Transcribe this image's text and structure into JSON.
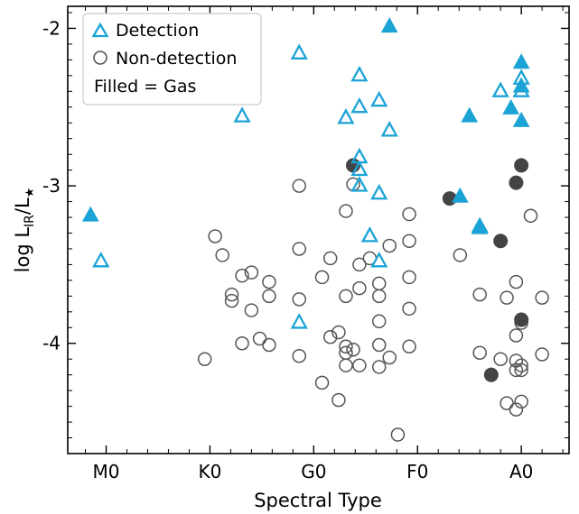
{
  "chart_data": {
    "type": "scatter",
    "xlabel": "Spectral Type",
    "ylabel_main": "log L",
    "ylabel_sub1": "IR",
    "ylabel_mid": "/L",
    "ylabel_sub2": "★",
    "x_ticks": [
      {
        "label": "M0",
        "value": 0
      },
      {
        "label": "K0",
        "value": 1
      },
      {
        "label": "G0",
        "value": 2
      },
      {
        "label": "F0",
        "value": 3
      },
      {
        "label": "A0",
        "value": 4
      }
    ],
    "y_ticks": [
      {
        "label": "-2",
        "value": -2
      },
      {
        "label": "-3",
        "value": -3
      },
      {
        "label": "-4",
        "value": -4
      }
    ],
    "xlim": [
      -0.37,
      4.46
    ],
    "ylim": [
      -4.7,
      -1.86
    ],
    "legend": {
      "position": "top-left",
      "entries": [
        "Detection",
        "Non-detection",
        "Filled = Gas"
      ]
    },
    "colors": {
      "detection": "#1ba3d6",
      "nondetection": "#555555",
      "gas": "#444444"
    },
    "series": [
      {
        "name": "Detection",
        "marker": "triangle-open",
        "points": [
          [
            -0.05,
            -3.48
          ],
          [
            1.31,
            -2.56
          ],
          [
            1.86,
            -2.16
          ],
          [
            2.31,
            -2.57
          ],
          [
            2.44,
            -2.3
          ],
          [
            2.44,
            -2.5
          ],
          [
            2.44,
            -2.82
          ],
          [
            2.44,
            -2.9
          ],
          [
            2.44,
            -3.0
          ],
          [
            2.54,
            -3.32
          ],
          [
            2.63,
            -2.46
          ],
          [
            2.63,
            -3.05
          ],
          [
            2.63,
            -3.48
          ],
          [
            2.73,
            -2.65
          ],
          [
            1.86,
            -3.87
          ],
          [
            3.6,
            -3.26
          ],
          [
            3.8,
            -2.4
          ],
          [
            4.0,
            -2.32
          ],
          [
            4.0,
            -2.4
          ]
        ]
      },
      {
        "name": "Detection (gas)",
        "marker": "triangle-filled",
        "points": [
          [
            -0.15,
            -3.19
          ],
          [
            2.73,
            -1.99
          ],
          [
            3.41,
            -3.07
          ],
          [
            3.5,
            -2.56
          ],
          [
            3.9,
            -2.51
          ],
          [
            4.0,
            -2.22
          ],
          [
            4.0,
            -2.37
          ],
          [
            4.0,
            -2.59
          ],
          [
            3.6,
            -3.27
          ]
        ]
      },
      {
        "name": "Non-detection",
        "marker": "circle-open",
        "points": [
          [
            0.95,
            -4.1
          ],
          [
            1.05,
            -3.32
          ],
          [
            1.12,
            -3.44
          ],
          [
            1.21,
            -3.69
          ],
          [
            1.21,
            -3.73
          ],
          [
            1.31,
            -3.57
          ],
          [
            1.4,
            -3.55
          ],
          [
            1.4,
            -3.79
          ],
          [
            1.48,
            -3.97
          ],
          [
            1.31,
            -4.0
          ],
          [
            1.57,
            -3.61
          ],
          [
            1.57,
            -3.7
          ],
          [
            1.57,
            -4.01
          ],
          [
            1.86,
            -3.0
          ],
          [
            1.86,
            -3.4
          ],
          [
            1.86,
            -3.72
          ],
          [
            1.86,
            -4.08
          ],
          [
            2.08,
            -3.58
          ],
          [
            2.16,
            -3.46
          ],
          [
            2.16,
            -3.96
          ],
          [
            2.08,
            -4.25
          ],
          [
            2.24,
            -3.93
          ],
          [
            2.24,
            -4.36
          ],
          [
            2.31,
            -3.16
          ],
          [
            2.31,
            -3.7
          ],
          [
            2.31,
            -4.02
          ],
          [
            2.31,
            -4.06
          ],
          [
            2.31,
            -4.14
          ],
          [
            2.38,
            -2.99
          ],
          [
            2.38,
            -4.04
          ],
          [
            2.44,
            -3.5
          ],
          [
            2.44,
            -3.65
          ],
          [
            2.44,
            -4.14
          ],
          [
            2.54,
            -3.46
          ],
          [
            2.63,
            -3.62
          ],
          [
            2.63,
            -3.7
          ],
          [
            2.63,
            -3.86
          ],
          [
            2.63,
            -4.01
          ],
          [
            2.63,
            -4.15
          ],
          [
            2.73,
            -3.38
          ],
          [
            2.73,
            -4.09
          ],
          [
            2.81,
            -4.58
          ],
          [
            2.92,
            -3.18
          ],
          [
            2.92,
            -3.35
          ],
          [
            2.92,
            -3.58
          ],
          [
            2.92,
            -3.78
          ],
          [
            2.92,
            -4.02
          ],
          [
            3.41,
            -3.44
          ],
          [
            3.6,
            -3.69
          ],
          [
            3.6,
            -4.06
          ],
          [
            3.8,
            -4.1
          ],
          [
            3.86,
            -3.71
          ],
          [
            3.86,
            -4.38
          ],
          [
            3.95,
            -3.61
          ],
          [
            3.95,
            -3.95
          ],
          [
            3.95,
            -4.11
          ],
          [
            3.95,
            -4.17
          ],
          [
            3.95,
            -4.42
          ],
          [
            4.0,
            -3.87
          ],
          [
            4.0,
            -4.14
          ],
          [
            4.0,
            -4.17
          ],
          [
            4.0,
            -4.37
          ],
          [
            4.09,
            -3.19
          ],
          [
            4.2,
            -3.71
          ],
          [
            4.2,
            -4.07
          ]
        ]
      },
      {
        "name": "Non-detection (gas)",
        "marker": "circle-filled",
        "points": [
          [
            2.38,
            -2.87
          ],
          [
            3.31,
            -3.08
          ],
          [
            3.71,
            -4.2
          ],
          [
            3.8,
            -3.35
          ],
          [
            3.95,
            -2.98
          ],
          [
            4.0,
            -2.87
          ],
          [
            4.0,
            -3.85
          ]
        ]
      }
    ]
  }
}
